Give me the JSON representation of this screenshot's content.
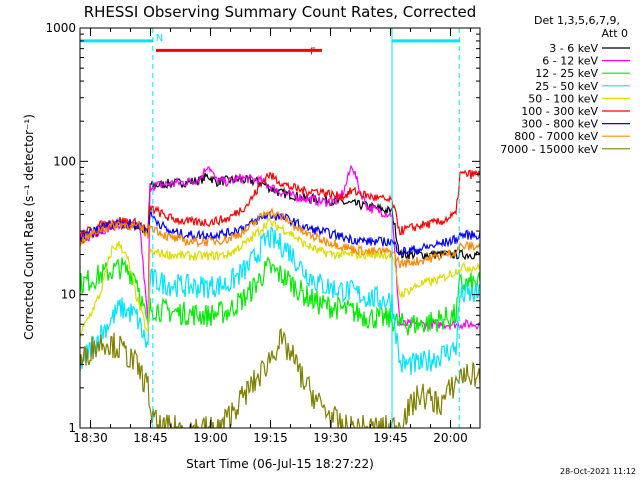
{
  "chart_data": {
    "type": "line",
    "title": "RHESSI Observing Summary Count Rates, Corrected",
    "xlabel": "Start Time (06-Jul-15 18:27:22)",
    "ylabel": "Corrected Count Rate (s⁻¹ detector⁻¹)",
    "yscale": "log",
    "ylim": [
      1,
      1000
    ],
    "xlim_minutes_from_start": [
      0,
      100
    ],
    "x_tick_labels": [
      "18:30",
      "18:45",
      "19:00",
      "19:15",
      "19:30",
      "19:45",
      "20:00"
    ],
    "x_tick_minutes": [
      2.633,
      17.633,
      32.633,
      47.633,
      62.633,
      77.633,
      92.633
    ],
    "y_tick_labels": [
      "1",
      "10",
      "100",
      "1000"
    ],
    "y_tick_values": [
      1,
      10,
      100,
      1000
    ],
    "legend_header": [
      "Det 1,3,5,6,7,9,",
      "Att 0"
    ],
    "legend_position": "right",
    "flags": [
      {
        "label": "N",
        "color": "#00e5ff",
        "segments": [
          [
            0,
            18.2
          ],
          [
            78.0,
            95.0
          ]
        ],
        "level": 800
      },
      {
        "label": "F",
        "color": "#ff0000",
        "segments": [
          [
            19.0,
            60.5
          ]
        ],
        "level": 680
      }
    ],
    "attenuator_lines_minutes": [
      18.2,
      78.0,
      94.8
    ],
    "series": [
      {
        "name": "3 - 6 keV",
        "color": "#000000",
        "x": [
          0,
          5,
          10,
          15,
          17,
          17.5,
          22,
          27,
          30,
          32,
          34,
          37,
          40,
          45,
          48,
          50,
          53,
          56,
          60,
          64,
          68,
          72,
          75,
          78,
          80
        ],
        "y": [
          25,
          30,
          34,
          32,
          28,
          65,
          68,
          70,
          72,
          78,
          70,
          72,
          73,
          70,
          62,
          58,
          56,
          53,
          52,
          50,
          48,
          46,
          44,
          42,
          20
        ]
      },
      {
        "name": "6 - 12 keV",
        "color": "#ff00ff",
        "x": [
          0,
          5,
          10,
          15,
          17,
          17.5,
          22,
          27,
          30,
          32,
          34,
          37,
          40,
          45,
          48,
          50,
          53,
          56,
          60,
          64,
          66,
          68,
          70,
          72,
          75,
          78,
          80
        ],
        "y": [
          25,
          30,
          34,
          32,
          6,
          65,
          68,
          70,
          74,
          95,
          72,
          70,
          75,
          72,
          64,
          59,
          55,
          53,
          50,
          50,
          60,
          95,
          60,
          45,
          42,
          40,
          6
        ]
      },
      {
        "name": "12 - 25 keV",
        "color": "#00ee00",
        "x": [
          0,
          5,
          10,
          14,
          17,
          17.5,
          22,
          27,
          32,
          37,
          42,
          47,
          52,
          56,
          60,
          64,
          68,
          72,
          78,
          80,
          85,
          90,
          94,
          95
        ],
        "y": [
          12,
          14,
          16,
          14,
          5.5,
          8,
          7.5,
          7.2,
          7,
          7.5,
          10,
          16,
          13,
          10,
          8.5,
          8,
          7.5,
          6.8,
          6.5,
          6,
          6,
          6.5,
          7,
          12
        ]
      },
      {
        "name": "25 - 50 keV",
        "color": "#00e5ff",
        "x": [
          0,
          5,
          10,
          14,
          17,
          17.5,
          22,
          27,
          32,
          37,
          42,
          47,
          52,
          56,
          60,
          64,
          68,
          72,
          78,
          80,
          85,
          90,
          94,
          95
        ],
        "y": [
          3,
          5,
          8,
          7,
          4,
          13,
          12,
          11.5,
          11.5,
          12,
          16,
          27,
          22,
          15,
          12,
          11,
          10.5,
          9.5,
          9,
          3,
          3,
          3.5,
          4,
          10
        ]
      },
      {
        "name": "50 - 100 keV",
        "color": "#dddd00",
        "x": [
          0,
          5,
          8,
          10,
          12,
          14,
          17,
          17.5,
          22,
          27,
          32,
          37,
          42,
          47,
          52,
          56,
          60,
          64,
          68,
          72,
          78,
          80,
          85,
          90,
          94,
          95
        ],
        "y": [
          5,
          10,
          22,
          24,
          18,
          10,
          5,
          21,
          20,
          19.5,
          19.5,
          20,
          25,
          35,
          30,
          24,
          21,
          20,
          20,
          20,
          20,
          10,
          12,
          13,
          15,
          16
        ]
      },
      {
        "name": "100 - 300 keV",
        "color": "#ff0000",
        "x": [
          0,
          5,
          10,
          15,
          17,
          17.5,
          22,
          27,
          32,
          37,
          42,
          47,
          52,
          56,
          60,
          64,
          66,
          68,
          72,
          78,
          80,
          85,
          90,
          94,
          95
        ],
        "y": [
          28,
          33,
          36,
          34,
          30,
          45,
          38,
          35,
          35,
          37,
          48,
          80,
          65,
          60,
          60,
          55,
          55,
          60,
          55,
          50,
          30,
          33,
          35,
          40,
          80
        ]
      },
      {
        "name": "300 - 800 keV",
        "color": "#0000ff",
        "x": [
          0,
          5,
          10,
          15,
          17,
          17.5,
          22,
          27,
          32,
          37,
          42,
          47,
          52,
          56,
          60,
          64,
          68,
          72,
          78,
          80,
          85,
          90,
          94,
          95
        ],
        "y": [
          26,
          32,
          35,
          33,
          30,
          40,
          30,
          28,
          28,
          29,
          33,
          40,
          37,
          32,
          30,
          28,
          26,
          25,
          25,
          21,
          22,
          24,
          26,
          28
        ]
      },
      {
        "name": "800 - 7000 keV",
        "color": "#ff8800",
        "x": [
          0,
          5,
          10,
          15,
          17,
          17.5,
          22,
          27,
          32,
          37,
          42,
          47,
          52,
          56,
          60,
          64,
          68,
          72,
          78,
          80,
          85,
          90,
          94,
          95
        ],
        "y": [
          25,
          31,
          34,
          32,
          28,
          33,
          27,
          25,
          25,
          26,
          31,
          43,
          36,
          29,
          26,
          24,
          22,
          21,
          21,
          17,
          18,
          19.5,
          21,
          23
        ]
      },
      {
        "name": "7000 - 15000 keV",
        "color": "#808000",
        "x": [
          0,
          3,
          6,
          10,
          14,
          17,
          18,
          20,
          25,
          30,
          35,
          40,
          45,
          50,
          53,
          56,
          60,
          63,
          66,
          70,
          75,
          78,
          80,
          85,
          90,
          94,
          95
        ],
        "y": [
          3,
          4,
          4.5,
          4,
          3,
          2,
          1.2,
          1,
          1,
          1,
          1,
          1.6,
          2.5,
          4.5,
          3.5,
          2.2,
          1.5,
          1.2,
          1,
          1,
          1,
          1,
          1.1,
          1.8,
          1.5,
          2.2,
          2.5
        ]
      }
    ]
  },
  "footer_timestamp": "28-Oct-2021 11:12"
}
